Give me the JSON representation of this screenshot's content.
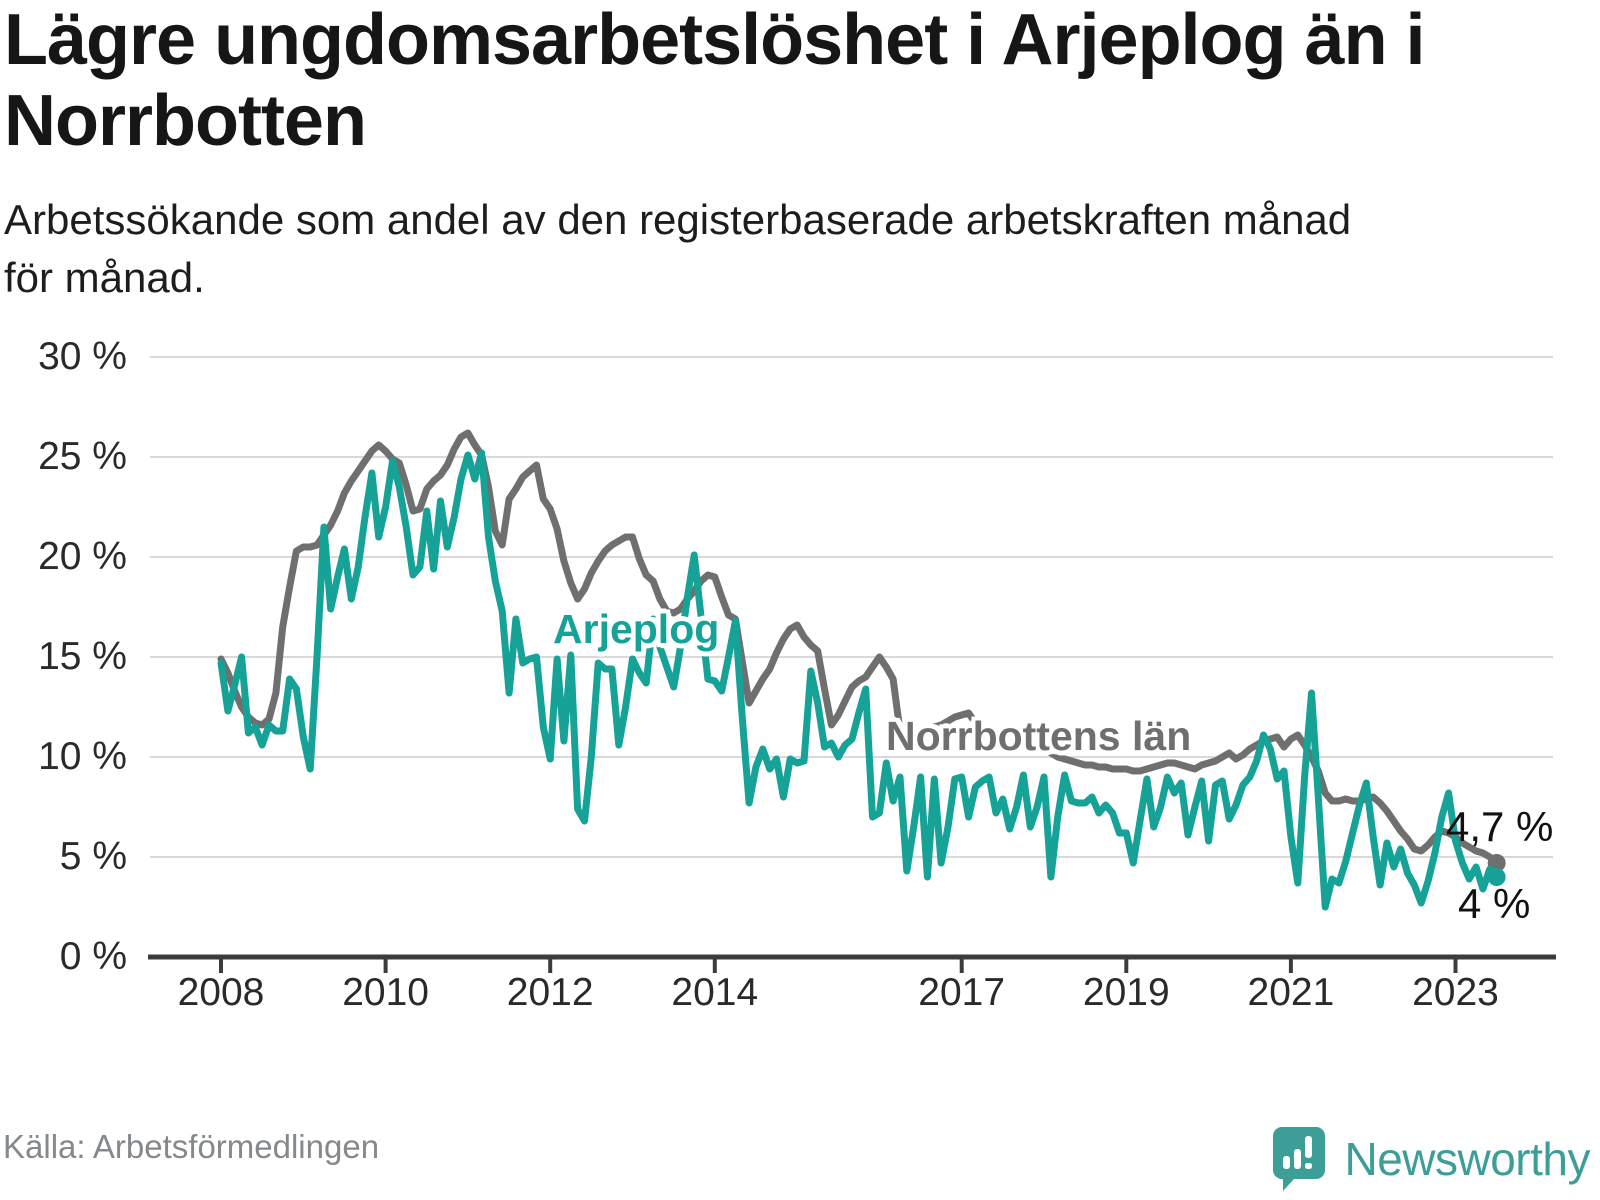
{
  "header": {
    "title": "Lägre ungdomsarbetslöshet i Arjeplog än i Norrbotten",
    "title_lines": [
      "Lägre ungdomsarbetslöshet i Arjeplog än i",
      "Norrbotten"
    ],
    "subtitle": "Arbetssökande som andel av den registerbaserade arbetskraften månad för månad.",
    "subtitle_lines": [
      "Arbetssökande som andel av den registerbaserade arbetskraften månad",
      "för månad."
    ]
  },
  "chart_data": {
    "type": "line",
    "title": "Lägre ungdomsarbetslöshet i Arjeplog än i Norrbotten",
    "x_unit": "month",
    "x_start": "2008-01",
    "x_end": "2023-07",
    "grid": "horizontal",
    "legend": "inline-labels",
    "ylim": [
      0,
      30
    ],
    "y_tick_values": [
      30,
      25,
      20,
      15,
      10,
      5,
      0
    ],
    "y_tick_labels": [
      "30 %",
      "25 %",
      "20 %",
      "15 %",
      "10 %",
      "5 %",
      "0 %"
    ],
    "x_tick_years": [
      2008,
      2010,
      2012,
      2014,
      2017,
      2019,
      2021,
      2023
    ],
    "colors": {
      "arjeplog": "#16a296",
      "norrbotten": "#6f6f6f",
      "grid": "#d9d9d9",
      "axis": "#3c3c3c"
    },
    "series": [
      {
        "name": "Norrbottens län",
        "color": "#6f6f6f",
        "end_label": "4,7 %",
        "end_value": 4.7,
        "values": [
          14.9,
          14.2,
          13.3,
          12.5,
          12.0,
          11.7,
          11.6,
          11.9,
          13.2,
          16.5,
          18.5,
          20.3,
          20.5,
          20.5,
          20.6,
          21.1,
          21.6,
          22.3,
          23.2,
          23.8,
          24.3,
          24.8,
          25.3,
          25.6,
          25.3,
          24.9,
          24.7,
          23.6,
          22.3,
          22.4,
          23.4,
          23.8,
          24.1,
          24.6,
          25.4,
          26.0,
          26.2,
          25.6,
          25.1,
          23.5,
          21.3,
          20.6,
          22.9,
          23.4,
          24.0,
          24.3,
          24.6,
          22.9,
          22.4,
          21.4,
          19.8,
          18.7,
          17.9,
          18.4,
          19.2,
          19.8,
          20.3,
          20.6,
          20.8,
          21.0,
          21.0,
          19.9,
          19.1,
          18.8,
          17.9,
          17.3,
          17.2,
          17.4,
          17.9,
          18.3,
          18.8,
          19.1,
          19.0,
          18.0,
          17.1,
          16.9,
          14.8,
          12.7,
          13.3,
          13.9,
          14.4,
          15.2,
          15.9,
          16.4,
          16.6,
          16.0,
          15.6,
          15.3,
          13.4,
          11.6,
          12.1,
          12.8,
          13.5,
          13.8,
          14.0,
          14.5,
          15.0,
          14.5,
          13.9,
          11.3,
          11.2,
          11.2,
          11.3,
          11.4,
          11.5,
          11.6,
          11.8,
          12.0,
          12.1,
          12.2,
          11.7,
          11.3,
          11.0,
          10.7,
          10.8,
          11.0,
          11.1,
          10.9,
          10.8,
          10.6,
          10.4,
          10.2,
          10.0,
          9.9,
          9.8,
          9.7,
          9.6,
          9.6,
          9.5,
          9.5,
          9.4,
          9.4,
          9.4,
          9.3,
          9.3,
          9.4,
          9.5,
          9.6,
          9.7,
          9.7,
          9.6,
          9.5,
          9.4,
          9.6,
          9.7,
          9.8,
          10.0,
          10.2,
          9.9,
          10.1,
          10.4,
          10.6,
          10.8,
          10.9,
          11.0,
          10.5,
          10.9,
          11.1,
          10.6,
          10.0,
          9.3,
          8.2,
          7.8,
          7.8,
          7.9,
          7.8,
          7.8,
          7.9,
          8.0,
          7.7,
          7.3,
          6.8,
          6.3,
          5.9,
          5.4,
          5.3,
          5.6,
          6.0,
          6.3,
          6.2,
          6.0,
          5.7,
          5.5,
          5.3,
          5.2,
          5.0,
          4.7
        ]
      },
      {
        "name": "Arjeplog",
        "color": "#16a296",
        "end_label": "4 %",
        "end_value": 4.0,
        "values": [
          14.7,
          12.3,
          13.6,
          15.0,
          11.2,
          11.5,
          10.6,
          11.6,
          11.3,
          11.3,
          13.9,
          13.4,
          11.0,
          9.4,
          15.0,
          21.5,
          17.4,
          19.0,
          20.4,
          17.9,
          19.5,
          22.0,
          24.2,
          21.0,
          22.5,
          24.8,
          23.5,
          21.5,
          19.1,
          19.5,
          22.3,
          19.4,
          22.8,
          20.5,
          22.0,
          23.9,
          25.1,
          23.9,
          25.2,
          21.0,
          18.8,
          17.3,
          13.2,
          16.9,
          14.7,
          14.9,
          15.0,
          11.5,
          9.9,
          14.9,
          10.8,
          15.1,
          7.4,
          6.8,
          10.0,
          14.7,
          14.4,
          14.4,
          10.6,
          12.5,
          14.9,
          14.2,
          13.7,
          16.9,
          15.5,
          14.5,
          13.5,
          15.5,
          18.0,
          20.1,
          17.0,
          13.9,
          13.8,
          13.3,
          15.0,
          16.8,
          12.0,
          7.7,
          9.5,
          10.4,
          9.4,
          9.9,
          8.0,
          9.9,
          9.7,
          9.8,
          14.3,
          12.7,
          10.5,
          10.7,
          10.0,
          10.6,
          10.9,
          12.2,
          13.4,
          7.0,
          7.2,
          9.7,
          7.8,
          9.0,
          4.3,
          6.5,
          9.0,
          4.0,
          8.9,
          4.7,
          6.5,
          8.9,
          9.0,
          7.0,
          8.5,
          8.8,
          9.0,
          7.2,
          7.9,
          6.4,
          7.5,
          9.1,
          6.5,
          7.5,
          9.0,
          4.0,
          7.0,
          9.1,
          7.8,
          7.7,
          7.7,
          8.0,
          7.2,
          7.6,
          7.2,
          6.2,
          6.2,
          4.7,
          6.8,
          8.9,
          6.5,
          7.5,
          9.0,
          8.2,
          8.7,
          6.1,
          7.5,
          8.8,
          5.8,
          8.6,
          8.8,
          6.9,
          7.6,
          8.6,
          9.0,
          9.8,
          11.1,
          10.4,
          8.9,
          9.3,
          6.0,
          3.7,
          9.0,
          13.2,
          8.0,
          2.5,
          3.9,
          3.7,
          4.8,
          6.2,
          7.6,
          8.7,
          6.0,
          3.6,
          5.7,
          4.5,
          5.4,
          4.2,
          3.6,
          2.7,
          3.8,
          5.2,
          7.0,
          8.2,
          5.8,
          4.7,
          3.9,
          4.5,
          3.4,
          4.4,
          4.0
        ]
      }
    ]
  },
  "footer": {
    "source": "Källa: Arbetsförmedlingen",
    "brand_text": "Newsworthy"
  }
}
